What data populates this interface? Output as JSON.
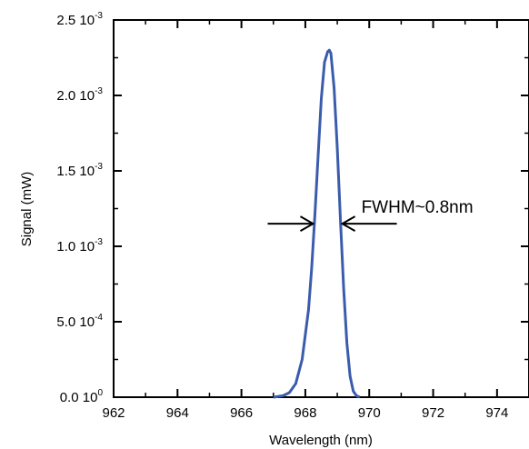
{
  "chart_data": {
    "type": "line",
    "xlabel": "Wavelength (nm)",
    "ylabel": "Signal (mW)",
    "xlim": [
      962,
      975
    ],
    "ylim": [
      0,
      0.0025
    ],
    "x_ticks": [
      962,
      964,
      966,
      968,
      970,
      972,
      974
    ],
    "y_ticks": [
      {
        "value": 0.0,
        "mantissa": "0.0",
        "base": "10",
        "exponent": "0"
      },
      {
        "value": 0.0005,
        "mantissa": "5.0",
        "base": "10",
        "exponent": "-4"
      },
      {
        "value": 0.001,
        "mantissa": "1.0",
        "base": "10",
        "exponent": "-3"
      },
      {
        "value": 0.0015,
        "mantissa": "1.5",
        "base": "10",
        "exponent": "-3"
      },
      {
        "value": 0.002,
        "mantissa": "2.0",
        "base": "10",
        "exponent": "-3"
      },
      {
        "value": 0.0025,
        "mantissa": "2.5",
        "base": "10",
        "exponent": "-3"
      }
    ],
    "series": [
      {
        "color": "#3b5cad",
        "x": [
          967.0,
          967.3,
          967.5,
          967.7,
          967.9,
          968.1,
          968.2,
          968.3,
          968.4,
          968.5,
          968.6,
          968.7,
          968.75,
          968.8,
          968.9,
          969.0,
          969.1,
          969.2,
          969.3,
          969.4,
          969.5,
          969.6,
          969.7
        ],
        "y": [
          0.0,
          1e-05,
          3e-05,
          9e-05,
          0.00025,
          0.00058,
          0.00086,
          0.00121,
          0.0016,
          0.00198,
          0.00222,
          0.00229,
          0.0023,
          0.00228,
          0.00205,
          0.00165,
          0.00117,
          0.00072,
          0.00036,
          0.00014,
          4e-05,
          1e-05,
          0.0
        ]
      }
    ],
    "annotation": {
      "text": "FWHM~0.8nm",
      "y": 0.00115,
      "x_left": 968.3,
      "x_right": 969.1
    },
    "minor_ticks": true,
    "grid": false
  }
}
